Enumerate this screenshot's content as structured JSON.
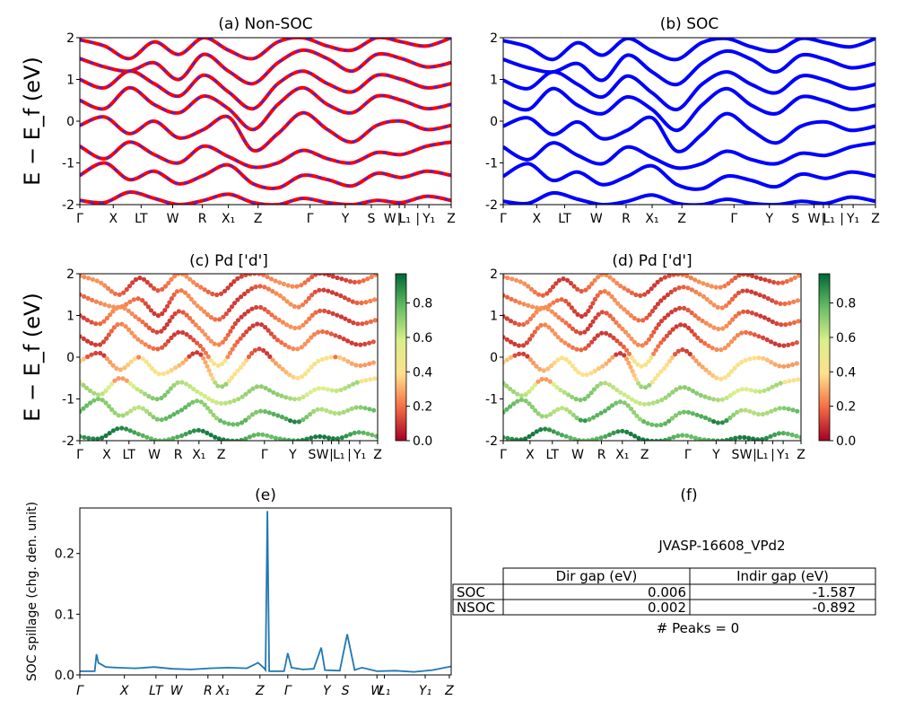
{
  "kpoint_labels": [
    "Γ",
    "X",
    "LT",
    "W",
    "R",
    "X₁",
    "Z",
    "Γ",
    "Y",
    "S",
    "W",
    "|",
    "L₁",
    "|",
    "Y₁",
    "Z"
  ],
  "panel_a": {
    "title": "(a) Non-SOC",
    "ylabel": "E − E_f (eV)",
    "ylim": [
      -2,
      2
    ],
    "yticks": [
      "-2",
      "-1",
      "0",
      "1",
      "2"
    ]
  },
  "panel_b": {
    "title": "(b) SOC",
    "ylim": [
      -2,
      2
    ],
    "yticks": [
      "-2",
      "-1",
      "0",
      "1",
      "2"
    ]
  },
  "panel_c": {
    "title": "(c)  Pd ['d']",
    "ylabel": "E − E_f (eV)",
    "ylim": [
      -2,
      2
    ],
    "yticks": [
      "-2",
      "-1",
      "0",
      "1",
      "2"
    ]
  },
  "panel_d": {
    "title": "(d) Pd ['d']",
    "ylim": [
      -2,
      2
    ],
    "yticks": [
      "-2",
      "-1",
      "0",
      "1",
      "2"
    ]
  },
  "colorbar": {
    "ticks": [
      "0.0",
      "0.2",
      "0.4",
      "0.6",
      "0.8"
    ],
    "range": [
      0,
      0.97
    ],
    "colormap": [
      "#a50026",
      "#f46d43",
      "#fee08b",
      "#d9ef8b",
      "#66bd63",
      "#006837"
    ]
  },
  "panel_e": {
    "title": "(e)",
    "ylabel": "SOC spillage (chg. den. unit)",
    "yticks": [
      "0.0",
      "0.1",
      "0.2"
    ],
    "xlabels": [
      "Γ",
      "X",
      "LT",
      "W",
      "R",
      "X₁",
      "Z",
      "Γ",
      "Y",
      "S",
      "W",
      "L₁",
      "Y₁",
      "Z"
    ]
  },
  "panel_f": {
    "title": "(f)",
    "name": "JVASP-16608_VPd2",
    "headers": [
      "Dir gap (eV)",
      "Indir gap (eV)"
    ],
    "rows": [
      {
        "label": "SOC",
        "dir": "0.006",
        "indir": "-1.587"
      },
      {
        "label": "NSOC",
        "dir": "0.002",
        "indir": "-0.892"
      }
    ],
    "peaks": "# Peaks = 0"
  },
  "colors": {
    "nonsoc": "#ff0000",
    "nonsoc_dash": "#2b2bff",
    "soc": "#0000ff",
    "spillage": "#1f77b4"
  },
  "chart_data": [
    {
      "type": "line",
      "title": "(a) Non-SOC",
      "ylabel": "E − E_f (eV)",
      "ylim": [
        -2,
        2
      ],
      "x_range": [
        0,
        1
      ],
      "bands": [
        [
          -1.9,
          -1.95,
          -1.7,
          -1.85,
          -2.0,
          -1.9,
          -1.75,
          -1.95,
          -2.0,
          -1.85,
          -1.95,
          -2.0,
          -1.9,
          -1.95,
          -1.8,
          -1.9
        ],
        [
          -1.3,
          -1.0,
          -1.4,
          -1.2,
          -1.5,
          -1.3,
          -1.05,
          -1.5,
          -1.6,
          -1.3,
          -1.4,
          -1.55,
          -1.25,
          -1.35,
          -1.2,
          -1.3
        ],
        [
          -0.6,
          -0.9,
          -0.5,
          -0.8,
          -1.0,
          -0.6,
          -0.85,
          -1.1,
          -1.0,
          -0.7,
          -0.9,
          -1.0,
          -0.75,
          -0.8,
          -0.6,
          -0.5
        ],
        [
          -0.1,
          0.1,
          -0.3,
          0.0,
          -0.4,
          -0.2,
          0.1,
          -0.7,
          -0.3,
          0.2,
          -0.2,
          -0.5,
          -0.1,
          0.0,
          -0.2,
          -0.1
        ],
        [
          0.5,
          0.3,
          0.8,
          0.4,
          0.2,
          0.6,
          0.3,
          -0.2,
          0.4,
          0.8,
          0.4,
          0.2,
          0.6,
          0.5,
          0.3,
          0.4
        ],
        [
          1.0,
          0.8,
          1.2,
          0.9,
          0.6,
          1.1,
          0.7,
          0.3,
          0.9,
          1.2,
          0.9,
          0.7,
          1.1,
          1.0,
          0.8,
          0.9
        ],
        [
          1.5,
          1.3,
          1.2,
          1.4,
          1.0,
          1.6,
          1.2,
          0.9,
          1.4,
          1.7,
          1.5,
          1.2,
          1.6,
          1.5,
          1.3,
          1.4
        ],
        [
          1.95,
          1.8,
          1.5,
          1.9,
          1.6,
          2.0,
          1.7,
          1.5,
          1.9,
          2.0,
          1.8,
          1.7,
          2.0,
          1.9,
          1.8,
          2.0
        ]
      ]
    },
    {
      "type": "line",
      "title": "(b) SOC",
      "ylim": [
        -2,
        2
      ],
      "x_range": [
        0,
        1
      ],
      "bands": [
        [
          -1.92,
          -1.97,
          -1.72,
          -1.87,
          -2.0,
          -1.92,
          -1.77,
          -1.97,
          -2.0,
          -1.87,
          -1.97,
          -2.0,
          -1.92,
          -1.97,
          -1.82,
          -1.92
        ],
        [
          -1.32,
          -1.02,
          -1.42,
          -1.22,
          -1.52,
          -1.32,
          -1.07,
          -1.52,
          -1.62,
          -1.32,
          -1.42,
          -1.57,
          -1.27,
          -1.37,
          -1.22,
          -1.32
        ],
        [
          -0.62,
          -0.92,
          -0.52,
          -0.82,
          -1.02,
          -0.62,
          -0.87,
          -1.12,
          -1.02,
          -0.72,
          -0.92,
          -1.02,
          -0.77,
          -0.82,
          -0.62,
          -0.52
        ],
        [
          -0.12,
          0.08,
          -0.32,
          -0.02,
          -0.42,
          -0.22,
          0.08,
          -0.72,
          -0.32,
          0.18,
          -0.22,
          -0.52,
          -0.12,
          -0.02,
          -0.22,
          -0.12
        ],
        [
          0.48,
          0.28,
          0.78,
          0.38,
          0.18,
          0.58,
          0.28,
          -0.22,
          0.38,
          0.78,
          0.38,
          0.18,
          0.58,
          0.48,
          0.28,
          0.38
        ],
        [
          0.98,
          0.78,
          1.18,
          0.88,
          0.58,
          1.08,
          0.68,
          0.28,
          0.88,
          1.18,
          0.88,
          0.68,
          1.08,
          0.98,
          0.78,
          0.88
        ],
        [
          1.48,
          1.28,
          1.18,
          1.38,
          0.98,
          1.58,
          1.18,
          0.88,
          1.38,
          1.68,
          1.48,
          1.18,
          1.58,
          1.48,
          1.28,
          1.38
        ],
        [
          1.93,
          1.78,
          1.48,
          1.88,
          1.58,
          1.98,
          1.68,
          1.48,
          1.88,
          1.98,
          1.78,
          1.68,
          1.98,
          1.88,
          1.78,
          1.98
        ]
      ]
    },
    {
      "type": "scatter",
      "title": "(c)  Pd ['d']",
      "ylim": [
        -2,
        2
      ]
    },
    {
      "type": "scatter",
      "title": "(d) Pd ['d']",
      "ylim": [
        -2,
        2
      ]
    },
    {
      "type": "line",
      "title": "(e)",
      "ylabel": "SOC spillage (chg. den. unit)",
      "ylim": [
        0,
        0.275
      ],
      "x": [
        0,
        0.04,
        0.045,
        0.05,
        0.07,
        0.1,
        0.15,
        0.2,
        0.25,
        0.3,
        0.35,
        0.4,
        0.45,
        0.48,
        0.495,
        0.5,
        0.505,
        0.51,
        0.55,
        0.56,
        0.57,
        0.6,
        0.63,
        0.65,
        0.66,
        0.7,
        0.72,
        0.74,
        0.75,
        0.76,
        0.8,
        0.85,
        0.9,
        0.95,
        1.0
      ],
      "y": [
        0.006,
        0.006,
        0.034,
        0.02,
        0.013,
        0.012,
        0.011,
        0.013,
        0.01,
        0.009,
        0.011,
        0.012,
        0.011,
        0.02,
        0.012,
        0.008,
        0.27,
        0.006,
        0.006,
        0.036,
        0.012,
        0.009,
        0.01,
        0.045,
        0.008,
        0.007,
        0.067,
        0.008,
        0.01,
        0.012,
        0.006,
        0.007,
        0.005,
        0.008,
        0.014
      ]
    }
  ]
}
